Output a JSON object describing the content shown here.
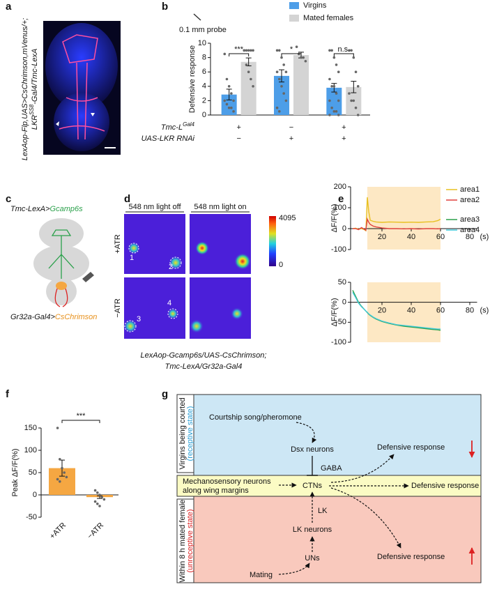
{
  "panel_labels": [
    "a",
    "b",
    "c",
    "d",
    "e",
    "f",
    "g"
  ],
  "panel_a": {
    "genotype_line1": "LexAop-Flp,UAS>CsChrimson,mVenus/+;",
    "genotype_line2": {
      "main": "LKR",
      "sup": "SS8",
      "rest": "-Gal4/Tmc-LexA"
    }
  },
  "chart_data": [
    {
      "type": "bar",
      "probe_label": "0.1 mm probe",
      "ylabel": "Defensive response",
      "ylim": [
        0,
        10
      ],
      "yticks": [
        0,
        2,
        4,
        6,
        8,
        10
      ],
      "series": [
        {
          "name": "Virgins",
          "color": "#4d9ee8",
          "values": [
            2.85,
            5.45,
            3.8
          ],
          "errors": [
            0.75,
            0.85,
            0.6
          ],
          "points": [
            [
              8.5,
              5,
              4,
              3,
              2,
              2,
              1.5,
              1,
              1,
              0.5
            ],
            [
              9,
              9,
              8,
              7,
              6,
              6,
              5,
              4,
              3,
              2,
              1,
              0.5
            ],
            [
              9,
              9,
              8,
              7,
              6,
              5,
              4,
              4,
              3,
              2,
              2,
              1,
              0.5,
              0.5,
              0,
              0
            ]
          ]
        },
        {
          "name": "Mated females",
          "color": "#d4d4d4",
          "values": [
            7.4,
            8.35,
            3.9
          ],
          "errors": [
            0.55,
            0.4,
            0.8
          ],
          "points": [
            [
              9,
              9,
              9,
              9,
              9,
              9,
              7,
              6,
              5,
              4
            ],
            [
              9.5,
              8.5,
              8,
              8,
              7.5
            ],
            [
              9,
              9,
              8,
              6,
              4,
              3,
              2,
              2,
              1,
              0
            ]
          ]
        }
      ],
      "significance": [
        "***",
        "*",
        "n.s."
      ],
      "genotype_rows": [
        {
          "label": "Tmc-L",
          "sup": "Gal4",
          "cells": [
            "+",
            "−",
            "+"
          ]
        },
        {
          "label": "UAS-LKR RNAi",
          "cells": [
            "−",
            "+",
            "+"
          ]
        }
      ]
    },
    {
      "type": "line",
      "ylabel": "ΔF/F(%)",
      "xlim": [
        0,
        85
      ],
      "xticks": [
        20,
        40,
        60,
        80
      ],
      "xunit": "(s)",
      "ylim": [
        -100,
        200
      ],
      "yticks": [
        -100,
        0,
        100,
        200
      ],
      "shade": [
        10,
        60
      ],
      "shade_color": "#fde8c4",
      "x": [
        0,
        2,
        4,
        6,
        8,
        9,
        10,
        11,
        12,
        14,
        16,
        20,
        25,
        30,
        35,
        40,
        45,
        50,
        55,
        58,
        60
      ],
      "series": [
        {
          "name": "area1",
          "color": "#e8c020",
          "values": [
            0,
            2,
            -3,
            0,
            -5,
            -10,
            150,
            80,
            40,
            35,
            32,
            30,
            32,
            31,
            30,
            31,
            30,
            32,
            33,
            38,
            45
          ]
        },
        {
          "name": "area2",
          "color": "#e0403c",
          "values": [
            0,
            0,
            -5,
            5,
            -3,
            -8,
            45,
            30,
            20,
            12,
            8,
            3,
            0,
            0,
            -1,
            0,
            -2,
            0,
            0,
            -1,
            0
          ]
        }
      ]
    },
    {
      "type": "line",
      "ylabel": "ΔF/F(%)",
      "xlim": [
        0,
        85
      ],
      "xticks": [
        20,
        40,
        60,
        80
      ],
      "xunit": "(s)",
      "ylim": [
        -100,
        50
      ],
      "yticks": [
        -100,
        -50,
        0,
        50
      ],
      "shade": [
        10,
        60
      ],
      "shade_color": "#fde8c4",
      "x": [
        0,
        2,
        4,
        6,
        8,
        9,
        10,
        11,
        12,
        14,
        16,
        20,
        25,
        30,
        35,
        40,
        45,
        50,
        55,
        58,
        60
      ],
      "series": [
        {
          "name": "area3",
          "color": "#2aa04a",
          "values": [
            30,
            15,
            0,
            -10,
            -18,
            -22,
            -26,
            -30,
            -33,
            -38,
            -42,
            -48,
            -53,
            -57,
            -60,
            -62,
            -64,
            -66,
            -68,
            -69,
            -70
          ]
        },
        {
          "name": "area4",
          "color": "#40c8d8",
          "values": [
            25,
            12,
            -2,
            -11,
            -18,
            -22,
            -25,
            -29,
            -32,
            -37,
            -41,
            -47,
            -52,
            -56,
            -58,
            -60,
            -62,
            -64,
            -66,
            -67,
            -67
          ]
        }
      ]
    },
    {
      "type": "bar",
      "ylabel": "Peak ΔF/F(%)",
      "categories": [
        "+ATR",
        "−ATR"
      ],
      "ylim": [
        -50,
        150
      ],
      "yticks": [
        -50,
        0,
        50,
        100,
        150
      ],
      "series": [
        {
          "color": "#f5a742",
          "values": [
            60,
            -5
          ],
          "errors": [
            18,
            3
          ],
          "points": [
            [
              150,
              80,
              60,
              50,
              40,
              35,
              30
            ],
            [
              10,
              5,
              0,
              -5,
              -10,
              -15,
              -20,
              -25
            ]
          ]
        }
      ],
      "significance": "***"
    }
  ],
  "panel_c": {
    "top": {
      "driver": "Tmc-LexA>",
      "reporter": "Gcamp6s"
    },
    "bottom": {
      "driver": "Gr32a-Gal4>",
      "reporter": "CsChrimson"
    }
  },
  "panel_d": {
    "columns": [
      "548 nm light off",
      "548 nm light on"
    ],
    "rows": [
      "+ATR",
      "−ATR"
    ],
    "colorbar": {
      "max": 4095,
      "min": 0
    },
    "region_labels": [
      "1",
      "2",
      "3",
      "4"
    ],
    "caption": [
      "LexAop-Gcamp6s/UAS-CsChrimson;",
      "Tmc-LexA/Gr32a-Gal4"
    ]
  },
  "panel_g": {
    "state_top": [
      "Virgins being courted",
      "(receptive state)"
    ],
    "state_bottom": [
      "Within 8 h mated female",
      "(unreceptive state)"
    ],
    "courtship": "Courtship song/pheromone",
    "dsx": "Dsx neurons",
    "gaba": "GABA",
    "def1": "Defensive response",
    "mech": [
      "Mechanosensory neurons",
      "along wing margins"
    ],
    "ctns": "CTNs",
    "def2": "Defensive response",
    "lk": "LK",
    "lk_neurons": "LK neurons",
    "uns": "UNs",
    "mating": "Mating",
    "def3": "Defensive response"
  }
}
